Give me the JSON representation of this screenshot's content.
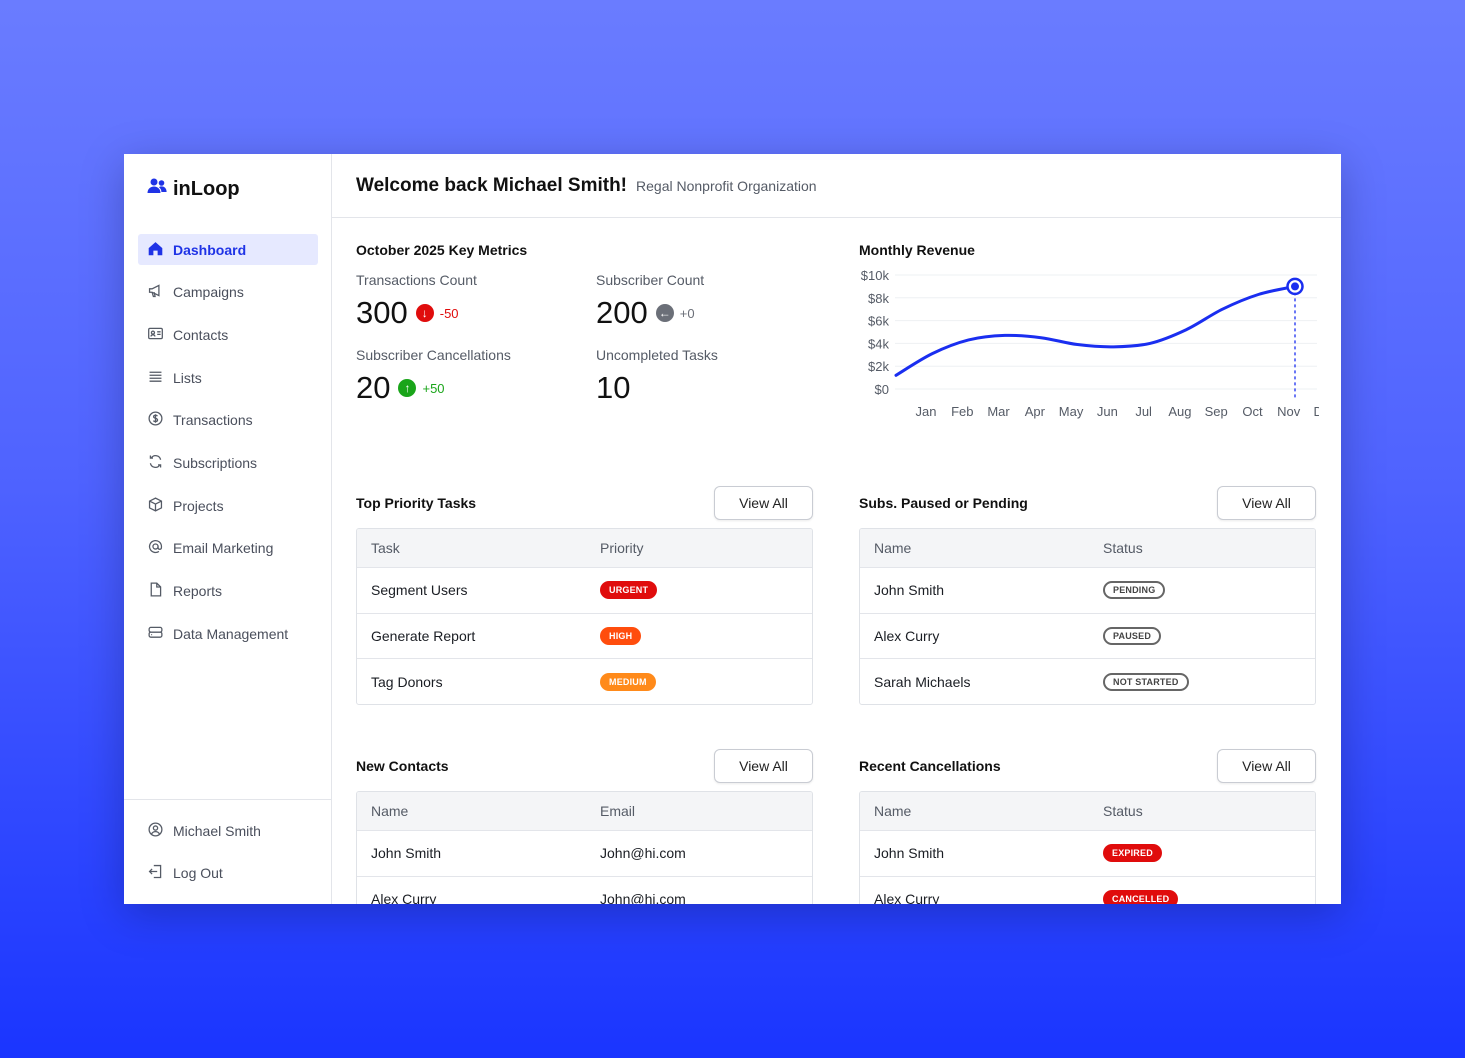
{
  "app": {
    "name": "inLoop"
  },
  "sidebar": {
    "items": [
      {
        "label": "Dashboard",
        "icon": "home-icon",
        "active": true
      },
      {
        "label": "Campaigns",
        "icon": "megaphone-icon"
      },
      {
        "label": "Contacts",
        "icon": "contact-card-icon"
      },
      {
        "label": "Lists",
        "icon": "list-icon"
      },
      {
        "label": "Transactions",
        "icon": "dollar-circle-icon"
      },
      {
        "label": "Subscriptions",
        "icon": "refresh-icon"
      },
      {
        "label": "Projects",
        "icon": "cube-icon"
      },
      {
        "label": "Email Marketing",
        "icon": "at-icon"
      },
      {
        "label": "Reports",
        "icon": "document-icon"
      },
      {
        "label": "Data Management",
        "icon": "database-icon"
      }
    ],
    "bottom": [
      {
        "label": "Michael Smith",
        "icon": "user-circle-icon"
      },
      {
        "label": "Log Out",
        "icon": "logout-icon"
      }
    ]
  },
  "header": {
    "title": "Welcome back Michael Smith!",
    "org": "Regal Nonprofit Organization"
  },
  "metrics": {
    "title": "October 2025 Key Metrics",
    "transactions": {
      "label": "Transactions Count",
      "value": "300",
      "delta": "-50",
      "direction": "down",
      "color": "#e00c0c"
    },
    "subscribers": {
      "label": "Subscriber Count",
      "value": "200",
      "delta": "+0",
      "direction": "flat",
      "color": "#6b6f78"
    },
    "cancellations": {
      "label": "Subscriber Cancellations",
      "value": "20",
      "delta": "+50",
      "direction": "up",
      "color": "#1aa51a"
    },
    "tasks": {
      "label": "Uncompleted Tasks",
      "value": "10"
    }
  },
  "chart_data": {
    "type": "line",
    "title": "Monthly Revenue",
    "categories": [
      "Jan",
      "Feb",
      "Mar",
      "Apr",
      "May",
      "Jun",
      "Jul",
      "Aug",
      "Sep",
      "Oct",
      "Nov",
      "Dec"
    ],
    "values": [
      1200,
      3100,
      4300,
      4700,
      4500,
      3900,
      3700,
      4000,
      5200,
      7000,
      8300,
      9000
    ],
    "ylim": [
      0,
      10000
    ],
    "yticks": [
      "$0",
      "$2k",
      "$4k",
      "$6k",
      "$8k",
      "$10k"
    ],
    "color": "#1a2ef0",
    "highlight": "Dec",
    "grid": true
  },
  "panels": {
    "tasks": {
      "title": "Top Priority Tasks",
      "button": "View All",
      "columns": [
        "Task",
        "Priority"
      ],
      "rows": [
        {
          "name": "Segment Users",
          "badge": "URGENT",
          "kind": "urgent"
        },
        {
          "name": "Generate Report",
          "badge": "HIGH",
          "kind": "high"
        },
        {
          "name": "Tag Donors",
          "badge": "MEDIUM",
          "kind": "medium"
        }
      ]
    },
    "subs": {
      "title": "Subs. Paused or Pending",
      "button": "View All",
      "columns": [
        "Name",
        "Status"
      ],
      "rows": [
        {
          "name": "John Smith",
          "badge": "PENDING",
          "kind": "outline"
        },
        {
          "name": "Alex Curry",
          "badge": "PAUSED",
          "kind": "outline"
        },
        {
          "name": "Sarah Michaels",
          "badge": "NOT STARTED",
          "kind": "outline"
        }
      ]
    },
    "contacts": {
      "title": "New Contacts",
      "button": "View All",
      "columns": [
        "Name",
        "Email"
      ],
      "rows": [
        {
          "name": "John Smith",
          "email": "John@hi.com"
        },
        {
          "name": "Alex Curry",
          "email": "John@hi.com"
        }
      ]
    },
    "cancellations": {
      "title": "Recent Cancellations",
      "button": "View All",
      "columns": [
        "Name",
        "Status"
      ],
      "rows": [
        {
          "name": "John Smith",
          "badge": "EXPIRED",
          "kind": "expired"
        },
        {
          "name": "Alex Curry",
          "badge": "CANCELLED",
          "kind": "cancelled"
        }
      ]
    }
  }
}
